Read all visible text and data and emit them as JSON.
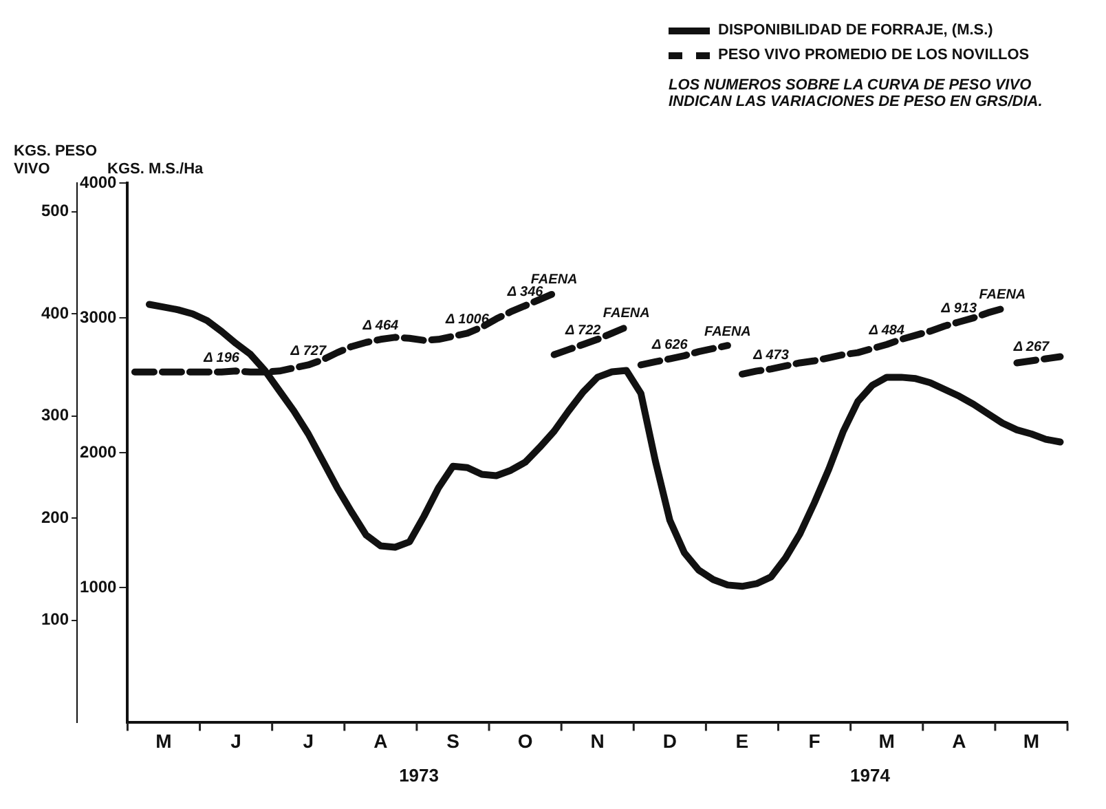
{
  "chart_data": {
    "type": "line",
    "ylabel": "KGS. M.S./Ha",
    "y2label": "KGS. PESO VIVO",
    "categories": [
      null,
      null,
      "M",
      null,
      null,
      null,
      null,
      "J",
      null,
      null,
      null,
      null,
      "J",
      null,
      null,
      null,
      null,
      "A",
      null,
      null,
      null,
      null,
      "S",
      null,
      null,
      null,
      null,
      "O",
      null,
      null,
      null,
      null,
      "N",
      null,
      null,
      null,
      null,
      "D",
      null,
      null,
      null,
      null,
      "E",
      null,
      null,
      null,
      null,
      "F",
      null,
      null,
      null,
      null,
      "M",
      null,
      null,
      null,
      null,
      "A",
      null,
      null,
      null,
      null,
      "M",
      null,
      null
    ],
    "ylim": [
      0,
      4000
    ],
    "yticks": [
      1000,
      2000,
      3000,
      4000
    ],
    "y2lim": [
      0,
      528
    ],
    "y2ticks": [
      100,
      200,
      300,
      400,
      500
    ],
    "grid": false,
    "legend": "top right",
    "marker": "none",
    "series": [
      {
        "name": "DISPONIBILIDAD DE FORRAJE, (M.S.)",
        "color": "#111111",
        "line_style": "solid",
        "values": [
          null,
          3100,
          3080,
          3060,
          3030,
          2980,
          2900,
          2810,
          2730,
          2610,
          2460,
          2310,
          2140,
          1940,
          1740,
          1560,
          1390,
          1310,
          1300,
          1340,
          1530,
          1740,
          1900,
          1890,
          1840,
          1830,
          1870,
          1930,
          2040,
          2160,
          2310,
          2450,
          2560,
          2600,
          2610,
          2440,
          1940,
          1500,
          1260,
          1130,
          1060,
          1020,
          1010,
          1030,
          1080,
          1220,
          1400,
          1630,
          1880,
          2160,
          2380,
          2500,
          2560,
          2560,
          2550,
          2520,
          2470,
          2420,
          2360,
          2290,
          2220,
          2170,
          2140,
          2100,
          2080
        ]
      },
      {
        "name": "PESO VIVO PROMEDIO DE LOS NOVILLOS",
        "color": "#111111",
        "line_style": "dashed",
        "axis": "y2",
        "values": [
          343,
          343,
          343,
          343,
          343,
          343,
          343,
          344,
          343,
          343,
          344,
          347,
          350,
          355,
          362,
          368,
          372,
          375,
          377,
          376,
          374,
          375,
          378,
          381,
          387,
          395,
          402,
          408,
          414,
          420,
          null,
          null,
          null,
          null,
          null,
          null,
          null,
          null,
          null,
          null,
          null,
          null,
          null,
          null,
          null,
          null,
          null,
          null,
          null,
          null,
          null,
          null,
          null,
          null,
          null,
          null,
          null,
          null,
          null,
          null,
          null,
          null,
          null,
          null,
          null
        ],
        "value_labels": [
          null,
          null,
          null,
          null,
          null,
          null,
          "Δ 196",
          null,
          null,
          null,
          null,
          null,
          "Δ 727",
          null,
          null,
          null,
          null,
          "Δ 464",
          null,
          null,
          null,
          null,
          null,
          "Δ 1006",
          null,
          null,
          null,
          "Δ 346",
          null,
          "FAENA",
          null,
          null,
          null,
          null,
          null,
          null,
          null,
          null,
          null,
          null,
          null,
          null,
          null,
          null,
          null,
          null,
          null,
          null,
          null,
          null,
          null,
          null,
          null,
          null,
          null,
          null,
          null,
          null,
          null,
          null,
          null,
          null,
          null,
          null,
          null
        ]
      },
      {
        "color": "#111111",
        "line_style": "dashed",
        "axis": "y2",
        "values": [
          null,
          null,
          null,
          null,
          null,
          null,
          null,
          null,
          null,
          null,
          null,
          null,
          null,
          null,
          null,
          null,
          null,
          null,
          null,
          null,
          null,
          null,
          null,
          null,
          null,
          null,
          null,
          null,
          null,
          360,
          365,
          370,
          375,
          381,
          387,
          null,
          null,
          null,
          null,
          null,
          null,
          null,
          null,
          null,
          null,
          null,
          null,
          null,
          null,
          null,
          null,
          null,
          null,
          null,
          null,
          null,
          null,
          null,
          null,
          null,
          null,
          null,
          null,
          null,
          null
        ],
        "value_labels": [
          null,
          null,
          null,
          null,
          null,
          null,
          null,
          null,
          null,
          null,
          null,
          null,
          null,
          null,
          null,
          null,
          null,
          null,
          null,
          null,
          null,
          null,
          null,
          null,
          null,
          null,
          null,
          null,
          null,
          null,
          null,
          "Δ 722",
          null,
          null,
          "FAENA",
          null,
          null,
          null,
          null,
          null,
          null,
          null,
          null,
          null,
          null,
          null,
          null,
          null,
          null,
          null,
          null,
          null,
          null,
          null,
          null,
          null,
          null,
          null,
          null,
          null,
          null,
          null,
          null,
          null,
          null
        ]
      },
      {
        "color": "#111111",
        "line_style": "dashed",
        "axis": "y2",
        "values": [
          null,
          null,
          null,
          null,
          null,
          null,
          null,
          null,
          null,
          null,
          null,
          null,
          null,
          null,
          null,
          null,
          null,
          null,
          null,
          null,
          null,
          null,
          null,
          null,
          null,
          null,
          null,
          null,
          null,
          null,
          null,
          null,
          null,
          null,
          null,
          350,
          353,
          356,
          359,
          363,
          366,
          369,
          null,
          null,
          null,
          null,
          null,
          null,
          null,
          null,
          null,
          null,
          null,
          null,
          null,
          null,
          null,
          null,
          null,
          null,
          null,
          null,
          null,
          null,
          null
        ],
        "value_labels": [
          null,
          null,
          null,
          null,
          null,
          null,
          null,
          null,
          null,
          null,
          null,
          null,
          null,
          null,
          null,
          null,
          null,
          null,
          null,
          null,
          null,
          null,
          null,
          null,
          null,
          null,
          null,
          null,
          null,
          null,
          null,
          null,
          null,
          null,
          null,
          null,
          null,
          "Δ 626",
          null,
          null,
          null,
          "FAENA",
          null,
          null,
          null,
          null,
          null,
          null,
          null,
          null,
          null,
          null,
          null,
          null,
          null,
          null,
          null,
          null,
          null,
          null,
          null,
          null,
          null,
          null,
          null
        ]
      },
      {
        "color": "#111111",
        "line_style": "dashed",
        "axis": "y2",
        "values": [
          null,
          null,
          null,
          null,
          null,
          null,
          null,
          null,
          null,
          null,
          null,
          null,
          null,
          null,
          null,
          null,
          null,
          null,
          null,
          null,
          null,
          null,
          null,
          null,
          null,
          null,
          null,
          null,
          null,
          null,
          null,
          null,
          null,
          null,
          null,
          null,
          null,
          null,
          null,
          null,
          null,
          null,
          341,
          344,
          346,
          349,
          352,
          354,
          357,
          360,
          362,
          366,
          370,
          375,
          379,
          383,
          388,
          392,
          396,
          401,
          405,
          null,
          null,
          null,
          null
        ],
        "value_labels": [
          null,
          null,
          null,
          null,
          null,
          null,
          null,
          null,
          null,
          null,
          null,
          null,
          null,
          null,
          null,
          null,
          null,
          null,
          null,
          null,
          null,
          null,
          null,
          null,
          null,
          null,
          null,
          null,
          null,
          null,
          null,
          null,
          null,
          null,
          null,
          null,
          null,
          null,
          null,
          null,
          null,
          null,
          null,
          null,
          "Δ 473",
          null,
          null,
          null,
          null,
          null,
          null,
          null,
          "Δ 484",
          null,
          null,
          null,
          null,
          "Δ 913",
          null,
          null,
          "FAENA",
          null,
          null,
          null,
          null
        ]
      },
      {
        "color": "#111111",
        "line_style": "dashed",
        "axis": "y2",
        "values": [
          null,
          null,
          null,
          null,
          null,
          null,
          null,
          null,
          null,
          null,
          null,
          null,
          null,
          null,
          null,
          null,
          null,
          null,
          null,
          null,
          null,
          null,
          null,
          null,
          null,
          null,
          null,
          null,
          null,
          null,
          null,
          null,
          null,
          null,
          null,
          null,
          null,
          null,
          null,
          null,
          null,
          null,
          null,
          null,
          null,
          null,
          null,
          null,
          null,
          null,
          null,
          null,
          null,
          null,
          null,
          null,
          null,
          null,
          null,
          null,
          null,
          352,
          354,
          356,
          358
        ],
        "value_labels": [
          null,
          null,
          null,
          null,
          null,
          null,
          null,
          null,
          null,
          null,
          null,
          null,
          null,
          null,
          null,
          null,
          null,
          null,
          null,
          null,
          null,
          null,
          null,
          null,
          null,
          null,
          null,
          null,
          null,
          null,
          null,
          null,
          null,
          null,
          null,
          null,
          null,
          null,
          null,
          null,
          null,
          null,
          null,
          null,
          null,
          null,
          null,
          null,
          null,
          null,
          null,
          null,
          null,
          null,
          null,
          null,
          null,
          null,
          null,
          null,
          null,
          null,
          "Δ 267",
          null,
          null
        ]
      }
    ],
    "annotations": [
      "1973",
      "1974",
      "LOS NUMEROS SOBRE LA CURVA DE PESO VIVO INDICAN LAS VARIACIONES DE PESO EN GRS/DIA."
    ]
  }
}
